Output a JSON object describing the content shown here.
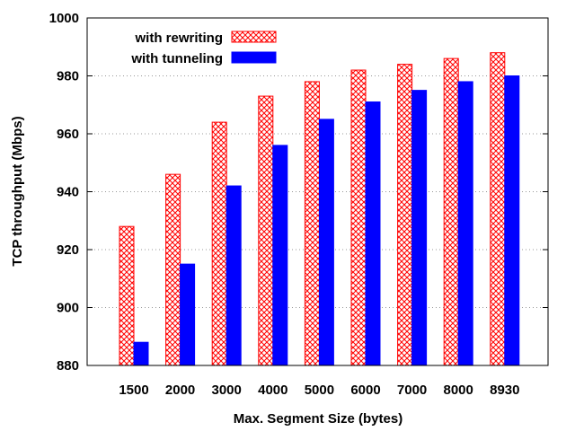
{
  "chart_data": {
    "type": "bar",
    "title": "",
    "xlabel": "Max. Segment Size (bytes)",
    "ylabel": "TCP throughput (Mbps)",
    "categories": [
      "1500",
      "2000",
      "3000",
      "4000",
      "5000",
      "6000",
      "7000",
      "8000",
      "8930"
    ],
    "series": [
      {
        "name": "with rewriting",
        "values": [
          928,
          946,
          964,
          973,
          978,
          982,
          984,
          986,
          988
        ],
        "color": "#ff0000",
        "pattern": "crosshatch"
      },
      {
        "name": "with tunneling",
        "values": [
          888,
          915,
          942,
          956,
          965,
          971,
          975,
          978,
          980
        ],
        "color": "#0000ff",
        "pattern": "solid"
      }
    ],
    "ylim": [
      880,
      1000
    ],
    "yticks": [
      880,
      900,
      920,
      940,
      960,
      980,
      1000
    ],
    "ytick_labels": [
      "880",
      "900",
      "920",
      "940",
      "960",
      "980",
      "1000"
    ],
    "grid": "horizontal-dotted",
    "legend_position": "top-left"
  }
}
